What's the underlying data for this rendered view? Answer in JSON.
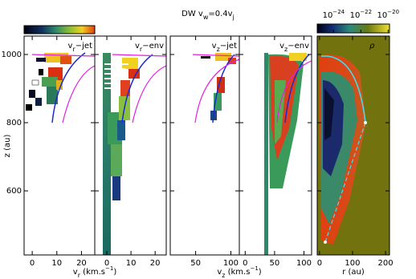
{
  "title": [
    "DW v",
    "w",
    "=0.4v",
    "j"
  ],
  "y_axis": {
    "label": "z (au)",
    "ylim": [
      412,
      1054
    ],
    "yticks": [
      600,
      800,
      1000
    ]
  },
  "panels": [
    {
      "label": [
        "v",
        "r",
        "−jet"
      ],
      "xlim": [
        -3.3,
        25.4
      ],
      "xticks": [
        0,
        10,
        20
      ]
    },
    {
      "label": [
        "v",
        "r",
        "−env"
      ],
      "xlim": [
        -5,
        24.6
      ],
      "xticks": [
        0,
        10,
        20
      ]
    },
    {
      "label": [
        "v",
        "z",
        "−jet"
      ],
      "xlim": [
        14,
        112
      ],
      "xticks": [
        50,
        100
      ]
    },
    {
      "label": [
        "v",
        "z",
        "−env"
      ],
      "xlim": [
        -10,
        113
      ],
      "xticks": [
        0,
        50,
        100
      ]
    },
    {
      "label": [
        "ρ"
      ],
      "xlim": [
        -7,
        212
      ],
      "xticks": [
        0,
        100,
        200
      ]
    }
  ],
  "x_axis_labels": [
    [
      "v",
      "r",
      " (km.s",
      "−1",
      ")"
    ],
    [
      "v",
      "z",
      " (km.s",
      "−1",
      ")"
    ],
    [
      "r (au)"
    ]
  ],
  "colorbar": {
    "clim": [
      6.3e-26,
      1.26e-20
    ],
    "log": true,
    "ticks": [
      {
        "value": 1e-24,
        "label": "10−24"
      },
      {
        "value": 1e-22,
        "label": "10−22"
      },
      {
        "value": 1e-20,
        "label": "10−20"
      }
    ]
  }
}
